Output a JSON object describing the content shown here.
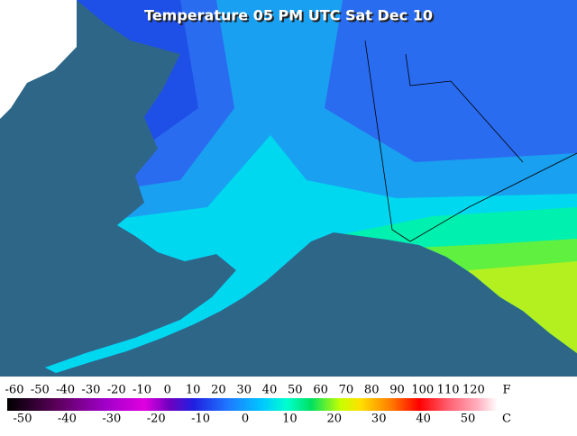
{
  "title": "Temperature 05 PM UTC Sat Dec 10",
  "legend": {
    "f_ticks": [
      -60,
      -50,
      -40,
      -30,
      -20,
      -10,
      0,
      10,
      20,
      30,
      40,
      50,
      60,
      70,
      80,
      90,
      100,
      110,
      120
    ],
    "f_unit": "F",
    "c_ticks": [
      -50,
      -40,
      -30,
      -20,
      -10,
      0,
      10,
      20,
      30,
      40,
      50
    ],
    "c_unit": "C"
  }
}
